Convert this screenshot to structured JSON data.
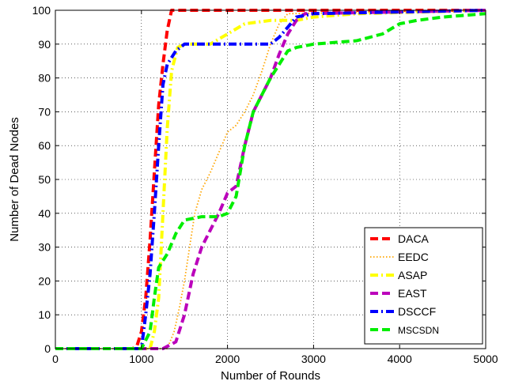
{
  "chart_data": {
    "type": "line",
    "xlabel": "Number of Rounds",
    "ylabel": "Number of Dead Nodes",
    "xlim": [
      0,
      5000
    ],
    "ylim": [
      0,
      100
    ],
    "xticks": [
      0,
      1000,
      2000,
      3000,
      4000,
      5000
    ],
    "yticks": [
      0,
      10,
      20,
      30,
      40,
      50,
      60,
      70,
      80,
      90,
      100
    ],
    "grid": true,
    "legend_position": "bottom-right",
    "series": [
      {
        "name": "DACA",
        "color": "#ff0000",
        "dash": "dashed",
        "points": [
          [
            0,
            0
          ],
          [
            900,
            0
          ],
          [
            950,
            1
          ],
          [
            1000,
            5
          ],
          [
            1050,
            15
          ],
          [
            1100,
            32
          ],
          [
            1150,
            52
          ],
          [
            1200,
            72
          ],
          [
            1250,
            84
          ],
          [
            1300,
            94
          ],
          [
            1350,
            100
          ],
          [
            5000,
            100
          ]
        ]
      },
      {
        "name": "EEDC",
        "color": "#ffa500",
        "dash": "dotted",
        "points": [
          [
            0,
            0
          ],
          [
            1300,
            0
          ],
          [
            1380,
            5
          ],
          [
            1440,
            12
          ],
          [
            1500,
            20
          ],
          [
            1560,
            30
          ],
          [
            1620,
            40
          ],
          [
            1700,
            47
          ],
          [
            1800,
            52
          ],
          [
            1900,
            58
          ],
          [
            2000,
            64
          ],
          [
            2100,
            66
          ],
          [
            2200,
            70
          ],
          [
            2300,
            75
          ],
          [
            2400,
            82
          ],
          [
            2500,
            90
          ],
          [
            2600,
            96
          ],
          [
            2700,
            99
          ],
          [
            5000,
            100
          ]
        ]
      },
      {
        "name": "ASAP",
        "color": "#ffff00",
        "dash": "dashdot",
        "points": [
          [
            0,
            0
          ],
          [
            1100,
            0
          ],
          [
            1150,
            5
          ],
          [
            1200,
            15
          ],
          [
            1250,
            40
          ],
          [
            1300,
            65
          ],
          [
            1350,
            82
          ],
          [
            1420,
            89
          ],
          [
            1500,
            90
          ],
          [
            1800,
            90
          ],
          [
            2000,
            93
          ],
          [
            2200,
            96
          ],
          [
            2500,
            97
          ],
          [
            2800,
            97
          ],
          [
            3000,
            98
          ],
          [
            3500,
            99
          ],
          [
            5000,
            100
          ]
        ]
      },
      {
        "name": "EAST",
        "color": "#bb00bb",
        "dash": "dashed",
        "points": [
          [
            0,
            0
          ],
          [
            1250,
            0
          ],
          [
            1400,
            2
          ],
          [
            1500,
            10
          ],
          [
            1600,
            22
          ],
          [
            1700,
            30
          ],
          [
            1800,
            35
          ],
          [
            1900,
            40
          ],
          [
            2000,
            46
          ],
          [
            2100,
            48
          ],
          [
            2200,
            60
          ],
          [
            2300,
            70
          ],
          [
            2400,
            75
          ],
          [
            2500,
            80
          ],
          [
            2600,
            87
          ],
          [
            2700,
            93
          ],
          [
            2800,
            97
          ],
          [
            2900,
            99
          ],
          [
            5000,
            100
          ]
        ]
      },
      {
        "name": "DSCCF",
        "color": "#0000ff",
        "dash": "dashdot",
        "points": [
          [
            0,
            0
          ],
          [
            1000,
            0
          ],
          [
            1050,
            10
          ],
          [
            1100,
            22
          ],
          [
            1150,
            40
          ],
          [
            1200,
            60
          ],
          [
            1250,
            78
          ],
          [
            1300,
            84
          ],
          [
            1400,
            88
          ],
          [
            1500,
            90
          ],
          [
            2500,
            90
          ],
          [
            2600,
            92
          ],
          [
            2700,
            95
          ],
          [
            2800,
            98
          ],
          [
            3000,
            99
          ],
          [
            5000,
            100
          ]
        ]
      },
      {
        "name": "MSCSDN",
        "color": "#00ee00",
        "dash": "dashed",
        "points": [
          [
            0,
            0
          ],
          [
            1000,
            0
          ],
          [
            1100,
            5
          ],
          [
            1150,
            15
          ],
          [
            1200,
            24
          ],
          [
            1300,
            28
          ],
          [
            1400,
            34
          ],
          [
            1500,
            38
          ],
          [
            1700,
            39
          ],
          [
            1900,
            39
          ],
          [
            2000,
            40
          ],
          [
            2100,
            45
          ],
          [
            2200,
            60
          ],
          [
            2300,
            70
          ],
          [
            2400,
            75
          ],
          [
            2500,
            80
          ],
          [
            2600,
            84
          ],
          [
            2700,
            88
          ],
          [
            2800,
            89
          ],
          [
            3000,
            90
          ],
          [
            3500,
            91
          ],
          [
            3800,
            93
          ],
          [
            4000,
            96
          ],
          [
            4200,
            97
          ],
          [
            4500,
            98
          ],
          [
            5000,
            99
          ]
        ]
      }
    ]
  }
}
